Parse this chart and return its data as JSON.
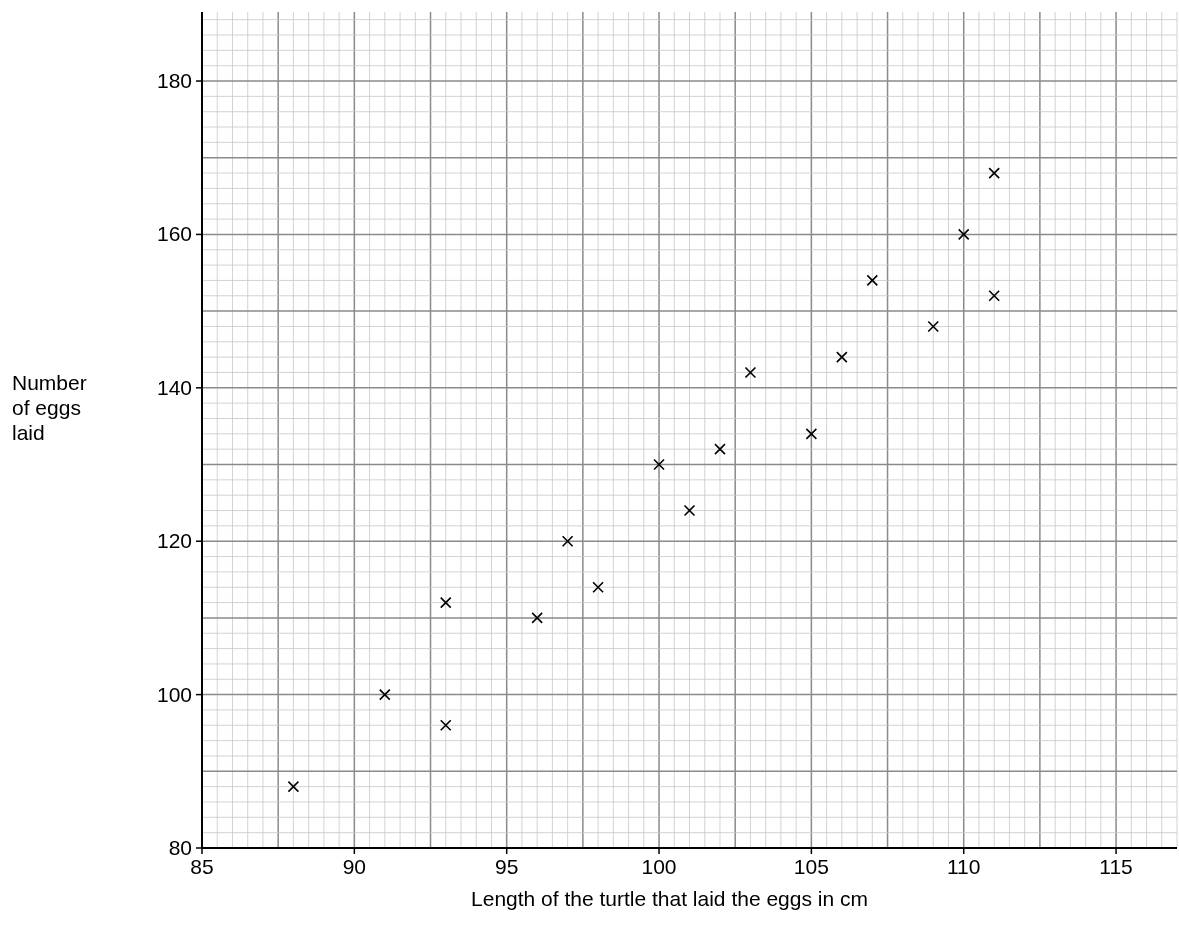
{
  "chart_data": {
    "type": "scatter",
    "xlabel": "Length of the turtle that laid the eggs in cm",
    "ylabel": "Number of eggs laid",
    "x": [
      88,
      91,
      93,
      93,
      96,
      97,
      98,
      100,
      101,
      102,
      103,
      105,
      106,
      107,
      109,
      110,
      111,
      111
    ],
    "values": [
      88,
      100,
      112,
      96,
      110,
      120,
      114,
      130,
      124,
      132,
      142,
      134,
      144,
      154,
      148,
      160,
      168,
      152
    ],
    "color": "#000000",
    "marker": "cross",
    "grid": true,
    "xlim": [
      85,
      117
    ],
    "xticks": [
      85,
      90,
      95,
      100,
      105,
      110,
      115
    ],
    "ylim": [
      80,
      189
    ],
    "yticks": [
      80,
      100,
      120,
      140,
      160,
      180
    ]
  }
}
